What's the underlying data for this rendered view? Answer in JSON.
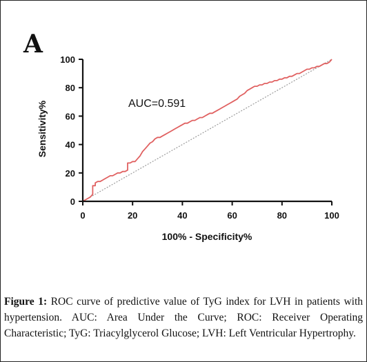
{
  "panel_label": "A",
  "caption": {
    "label": "Figure 1:",
    "text": "ROC curve of predictive value of TyG index for LVH in patients with hypertension. AUC: Area Under the Curve; ROC: Receiver Operating Characteristic; TyG: Triacylglycerol Glucose; LVH: Left Ventricular Hypertrophy."
  },
  "colors": {
    "curve": "#e06060",
    "reference": "#9a9a9a",
    "axis": "#111111"
  },
  "chart_data": {
    "type": "line",
    "xlabel": "100% - Specificity%",
    "ylabel": "Sensitivity%",
    "xlim": [
      0,
      100
    ],
    "ylim": [
      0,
      100
    ],
    "xticks": [
      0,
      20,
      40,
      60,
      80,
      100
    ],
    "yticks": [
      0,
      20,
      40,
      60,
      80,
      100
    ],
    "annotation": "AUC=0.591",
    "grid": false,
    "series": [
      {
        "x": [
          0,
          1,
          2,
          3,
          4,
          4,
          5,
          5,
          6,
          7,
          8,
          9,
          10,
          11,
          12,
          13,
          14,
          15,
          16,
          17,
          18,
          18,
          19,
          20,
          21,
          22,
          23,
          24,
          25,
          26,
          27,
          28,
          29,
          30,
          31,
          32,
          33,
          34,
          35,
          36,
          37,
          38,
          39,
          40,
          41,
          42,
          43,
          44,
          45,
          46,
          47,
          48,
          49,
          50,
          51,
          52,
          53,
          54,
          55,
          56,
          57,
          58,
          59,
          60,
          61,
          62,
          63,
          64,
          65,
          66,
          67,
          68,
          69,
          70,
          71,
          72,
          73,
          74,
          75,
          76,
          77,
          78,
          79,
          80,
          81,
          82,
          83,
          84,
          85,
          86,
          87,
          88,
          89,
          90,
          91,
          92,
          93,
          94,
          95,
          96,
          97,
          98,
          99,
          100
        ],
        "y": [
          0,
          1,
          2,
          3,
          5,
          11,
          11,
          13,
          14,
          14,
          15,
          16,
          17,
          18,
          18,
          19,
          20,
          20,
          21,
          21,
          22,
          27,
          27,
          28,
          28,
          30,
          32,
          35,
          37,
          39,
          41,
          42,
          44,
          45,
          45,
          46,
          47,
          48,
          49,
          50,
          51,
          52,
          53,
          54,
          55,
          55,
          56,
          57,
          57,
          58,
          59,
          59,
          60,
          61,
          62,
          62,
          63,
          64,
          65,
          66,
          67,
          68,
          69,
          70,
          71,
          72,
          74,
          75,
          76,
          78,
          79,
          80,
          81,
          81,
          82,
          82,
          83,
          83,
          84,
          84,
          85,
          85,
          86,
          86,
          87,
          87,
          88,
          88,
          89,
          90,
          90,
          91,
          92,
          93,
          93,
          94,
          94,
          95,
          95,
          96,
          97,
          97,
          98,
          100
        ]
      }
    ],
    "reference_line": {
      "x": [
        0,
        100
      ],
      "y": [
        0,
        100
      ]
    }
  }
}
